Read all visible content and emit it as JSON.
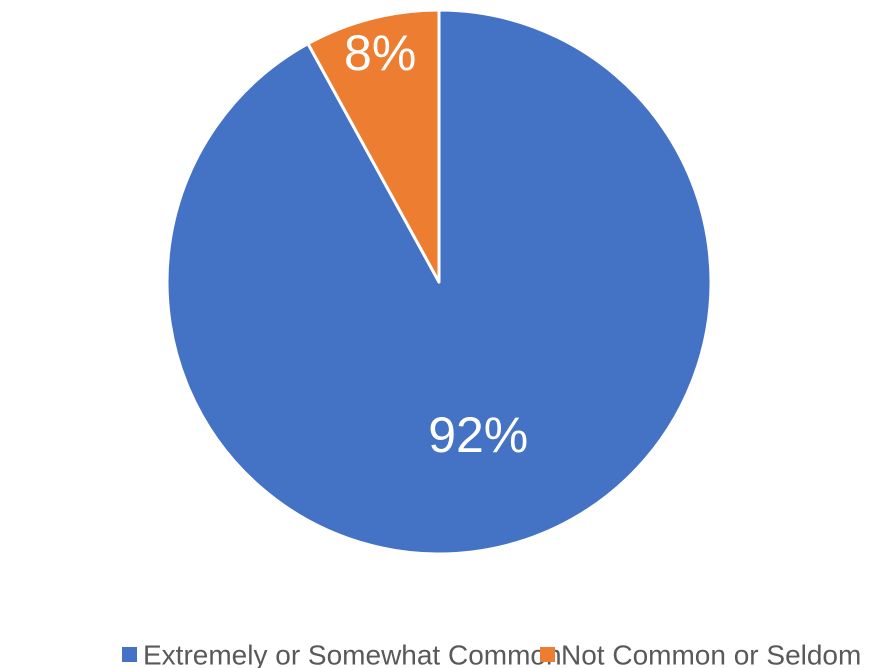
{
  "chart_data": {
    "type": "pie",
    "title": "",
    "slices": [
      {
        "label": "Extremely or Somewhat Common",
        "value": 92,
        "display": "92%",
        "color": "#4472C4"
      },
      {
        "label": "Not Common or Seldom",
        "value": 8,
        "display": "8%",
        "color": "#ED7D31"
      }
    ],
    "legend_position": "bottom",
    "start_angle": "12 o'clock",
    "direction": "clockwise"
  }
}
